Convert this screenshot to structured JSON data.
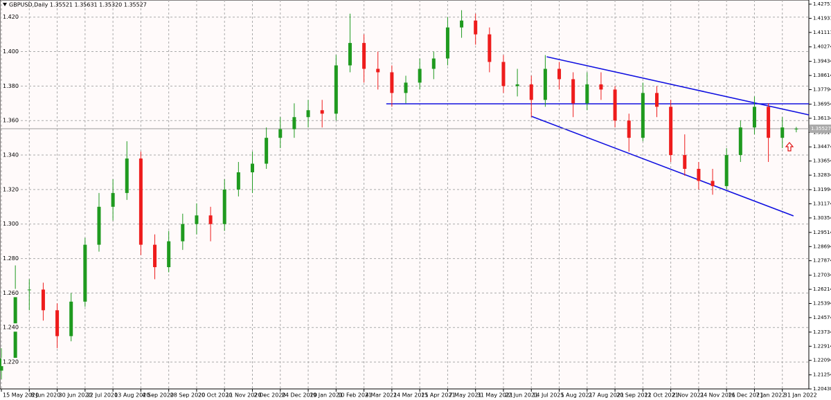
{
  "chart_data": {
    "type": "candlestick",
    "header": "GBPUSD,Daily 1.35521 1.35631 1.35320 1.35527",
    "open": [
      1.215,
      1.222,
      1.262,
      1.262,
      1.25,
      1.235,
      1.255,
      1.288,
      1.31,
      1.318,
      1.338,
      1.288,
      1.275,
      1.29,
      1.3,
      1.305,
      1.3,
      1.32,
      1.33,
      1.335,
      1.35,
      1.355,
      1.362,
      1.366,
      1.364,
      1.392,
      1.405,
      1.39,
      1.388,
      1.376,
      1.382,
      1.39,
      1.396,
      1.414,
      1.418,
      1.41,
      1.394,
      1.38,
      1.381,
      1.372,
      1.39,
      1.384,
      1.37,
      1.381,
      1.378,
      1.36,
      1.35,
      1.376,
      1.368,
      1.34,
      1.332,
      1.325,
      1.322,
      1.34,
      1.356,
      1.368,
      1.35,
      1.35521
    ],
    "high": [
      1.228,
      1.276,
      1.268,
      1.266,
      1.254,
      1.26,
      1.292,
      1.318,
      1.326,
      1.348,
      1.342,
      1.294,
      1.296,
      1.306,
      1.312,
      1.31,
      1.326,
      1.336,
      1.342,
      1.356,
      1.362,
      1.37,
      1.372,
      1.372,
      1.398,
      1.422,
      1.41,
      1.4,
      1.392,
      1.386,
      1.396,
      1.4,
      1.42,
      1.424,
      1.422,
      1.414,
      1.398,
      1.39,
      1.386,
      1.398,
      1.394,
      1.388,
      1.388,
      1.388,
      1.38,
      1.364,
      1.382,
      1.38,
      1.372,
      1.352,
      1.336,
      1.332,
      1.344,
      1.36,
      1.374,
      1.37,
      1.362,
      1.35631
    ],
    "low": [
      1.21,
      1.22,
      1.25,
      1.244,
      1.228,
      1.232,
      1.252,
      1.284,
      1.302,
      1.314,
      1.282,
      1.268,
      1.272,
      1.285,
      1.294,
      1.29,
      1.296,
      1.316,
      1.318,
      1.332,
      1.344,
      1.35,
      1.356,
      1.356,
      1.36,
      1.388,
      1.382,
      1.378,
      1.368,
      1.37,
      1.378,
      1.384,
      1.392,
      1.408,
      1.404,
      1.388,
      1.376,
      1.374,
      1.362,
      1.368,
      1.378,
      1.362,
      1.366,
      1.372,
      1.356,
      1.342,
      1.348,
      1.362,
      1.336,
      1.328,
      1.32,
      1.317,
      1.32,
      1.336,
      1.352,
      1.336,
      1.344,
      1.3532
    ],
    "close": [
      1.222,
      1.262,
      1.262,
      1.25,
      1.235,
      1.255,
      1.288,
      1.31,
      1.318,
      1.338,
      1.288,
      1.275,
      1.29,
      1.3,
      1.305,
      1.3,
      1.32,
      1.33,
      1.335,
      1.35,
      1.355,
      1.362,
      1.366,
      1.364,
      1.392,
      1.405,
      1.39,
      1.388,
      1.376,
      1.382,
      1.39,
      1.396,
      1.414,
      1.418,
      1.41,
      1.394,
      1.38,
      1.381,
      1.372,
      1.39,
      1.384,
      1.37,
      1.381,
      1.378,
      1.36,
      1.35,
      1.376,
      1.368,
      1.34,
      1.332,
      1.325,
      1.322,
      1.34,
      1.356,
      1.368,
      1.35,
      1.356,
      1.35527
    ],
    "up_color": "#1f9a1f",
    "down_color": "#ee1c1c",
    "current_price": 1.35527,
    "xlim": [
      -0.1,
      57.9
    ],
    "xticks": [
      {
        "value": 0,
        "label": "15 May 2020"
      },
      {
        "value": 2,
        "label": "8 Jun 2020"
      },
      {
        "value": 4,
        "label": "30 Jun 2020"
      },
      {
        "value": 6,
        "label": "22 Jul 2020"
      },
      {
        "value": 8,
        "label": "13 Aug 2020"
      },
      {
        "value": 10,
        "label": "4 Sep 2020"
      },
      {
        "value": 12,
        "label": "28 Sep 2020"
      },
      {
        "value": 14,
        "label": "20 Oct 2020"
      },
      {
        "value": 16,
        "label": "11 Nov 2020"
      },
      {
        "value": 18,
        "label": "2 Dec 2020"
      },
      {
        "value": 20,
        "label": "24 Dec 2020"
      },
      {
        "value": 22,
        "label": "19 Jan 2021"
      },
      {
        "value": 24,
        "label": "10 Feb 2021"
      },
      {
        "value": 26,
        "label": "4 Mar 2021"
      },
      {
        "value": 28,
        "label": "24 Mar 2021"
      },
      {
        "value": 30,
        "label": "15 Apr 2021"
      },
      {
        "value": 32,
        "label": "7 May 2021"
      },
      {
        "value": 34,
        "label": "31 May 2021"
      },
      {
        "value": 36,
        "label": "22 Jun 2021"
      },
      {
        "value": 38,
        "label": "14 Jul 2021"
      },
      {
        "value": 40,
        "label": "5 Aug 2021"
      },
      {
        "value": 42,
        "label": "27 Aug 2021"
      },
      {
        "value": 44,
        "label": "20 Sep 2021"
      },
      {
        "value": 46,
        "label": "12 Oct 2021"
      },
      {
        "value": 48,
        "label": "2 Nov 2021"
      },
      {
        "value": 50,
        "label": "24 Nov 2021"
      },
      {
        "value": 52,
        "label": "16 Dec 2021"
      },
      {
        "value": 54,
        "label": "7 Jan 2022"
      },
      {
        "value": 56,
        "label": "31 Jan 2022"
      }
    ],
    "ylim": [
      1.20438,
      1.42751
    ],
    "yticks": [
      1.42751,
      1.41931,
      1.41111,
      1.40274,
      1.39434,
      1.38614,
      1.37794,
      1.36954,
      1.36134,
      1.35314,
      1.34474,
      1.33654,
      1.32834,
      1.31994,
      1.31174,
      1.30354,
      1.29514,
      1.28694,
      1.27874,
      1.27034,
      1.26214,
      1.25394,
      1.24574,
      1.23734,
      1.22914,
      1.22094,
      1.21254,
      1.20438
    ],
    "y2lim": [
      1.20438,
      1.42751
    ],
    "y2ticks": [
      {
        "value": 1.42,
        "label": "1.420"
      },
      {
        "value": 1.4,
        "label": "1.400"
      },
      {
        "value": 1.38,
        "label": "1.380"
      },
      {
        "value": 1.36,
        "label": "1.360"
      },
      {
        "value": 1.34,
        "label": "1.340"
      },
      {
        "value": 1.32,
        "label": "1.320"
      },
      {
        "value": 1.3,
        "label": "1.300"
      },
      {
        "value": 1.28,
        "label": "1.280"
      },
      {
        "value": 1.26,
        "label": "1.260"
      },
      {
        "value": 1.24,
        "label": "1.240"
      },
      {
        "value": 1.22,
        "label": "1.220"
      }
    ],
    "grid": true,
    "lines": [
      {
        "x": [
          39.1,
          57.9
        ],
        "y": [
          1.39701,
          1.3633
        ],
        "color": "#1010e0"
      },
      {
        "x": [
          38.0,
          56.8
        ],
        "y": [
          1.3625,
          1.30471
        ],
        "color": "#1010e0"
      },
      {
        "x": [
          27.6,
          57.9
        ],
        "y": [
          1.36972,
          1.36972
        ],
        "color": "#1010e0"
      }
    ]
  }
}
